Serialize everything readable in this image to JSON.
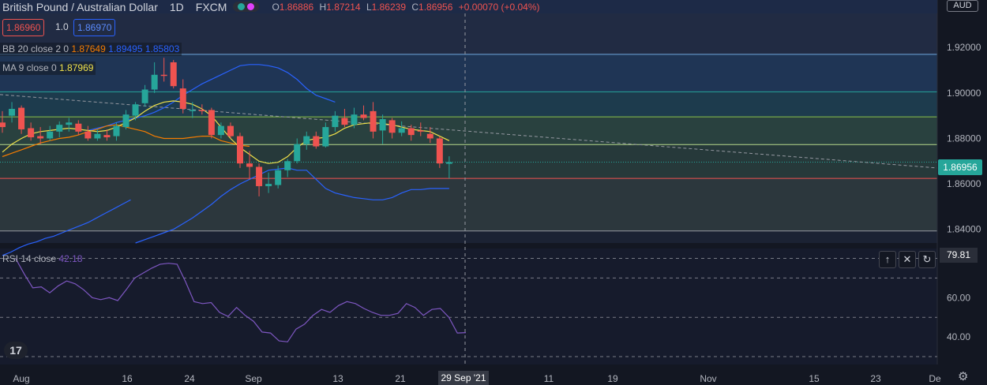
{
  "header": {
    "symbol": "British Pound / Australian Dollar",
    "interval": "1D",
    "exchange": "FXCM",
    "ohlc": [
      {
        "k": "O",
        "v": "1.86886"
      },
      {
        "k": "H",
        "v": "1.87214"
      },
      {
        "k": "L",
        "v": "1.86239"
      },
      {
        "k": "C",
        "v": "1.86956"
      }
    ],
    "change": "+0.00070 (+0.04%)"
  },
  "sell_price": "1.86960",
  "spread": "1.0",
  "buy_price": "1.86970",
  "indicators": {
    "bb": {
      "name": "BB 20 close 2 0",
      "basis": "1.87649",
      "upper": "1.89495",
      "lower": "1.85803"
    },
    "ma": {
      "name": "MA 9 close 0",
      "value": "1.87969"
    },
    "rsi": {
      "name": "RSI 14 close",
      "value": "42.18"
    }
  },
  "currency": "AUD",
  "current_price_tag": "1.86956",
  "rsi_tag": "79.81",
  "crosshair_date": "29 Sep '21",
  "colors": {
    "up": "#26a69a",
    "down": "#ef5350",
    "bb_upper": "#2962ff",
    "bb_basis": "#f57c00",
    "ma": "#f0e14a",
    "rsi": "#7e57c2",
    "bg": "#131722"
  },
  "chart_data": [
    {
      "type": "candlestick",
      "x_tick_labels": [
        "Aug",
        "16",
        "24",
        "Sep",
        "13",
        "21",
        "29 Sep '21",
        "11",
        "19",
        "Nov",
        "15",
        "23",
        "De"
      ],
      "y_tick_labels": [
        "1.92000",
        "1.90000",
        "1.88000",
        "1.86000",
        "1.84000"
      ],
      "ylim": [
        1.834,
        1.935
      ],
      "candles": [
        {
          "o": 1.887,
          "h": 1.892,
          "l": 1.8825,
          "c": 1.885
        },
        {
          "o": 1.89,
          "h": 1.896,
          "l": 1.887,
          "c": 1.893
        },
        {
          "o": 1.8935,
          "h": 1.8945,
          "l": 1.882,
          "c": 1.884
        },
        {
          "o": 1.8845,
          "h": 1.887,
          "l": 1.879,
          "c": 1.8805
        },
        {
          "o": 1.881,
          "h": 1.885,
          "l": 1.8775,
          "c": 1.88
        },
        {
          "o": 1.88,
          "h": 1.8855,
          "l": 1.879,
          "c": 1.883
        },
        {
          "o": 1.883,
          "h": 1.8875,
          "l": 1.8805,
          "c": 1.886
        },
        {
          "o": 1.886,
          "h": 1.889,
          "l": 1.883,
          "c": 1.887
        },
        {
          "o": 1.8865,
          "h": 1.888,
          "l": 1.8815,
          "c": 1.883
        },
        {
          "o": 1.883,
          "h": 1.8855,
          "l": 1.879,
          "c": 1.88
        },
        {
          "o": 1.88,
          "h": 1.884,
          "l": 1.879,
          "c": 1.882
        },
        {
          "o": 1.8815,
          "h": 1.884,
          "l": 1.879,
          "c": 1.8805
        },
        {
          "o": 1.881,
          "h": 1.887,
          "l": 1.879,
          "c": 1.8855
        },
        {
          "o": 1.885,
          "h": 1.8925,
          "l": 1.884,
          "c": 1.8905
        },
        {
          "o": 1.89,
          "h": 1.896,
          "l": 1.888,
          "c": 1.895
        },
        {
          "o": 1.8955,
          "h": 1.9035,
          "l": 1.894,
          "c": 1.9015
        },
        {
          "o": 1.9015,
          "h": 1.9135,
          "l": 1.9,
          "c": 1.908
        },
        {
          "o": 1.908,
          "h": 1.9155,
          "l": 1.905,
          "c": 1.9075
        },
        {
          "o": 1.9135,
          "h": 1.9145,
          "l": 1.902,
          "c": 1.903
        },
        {
          "o": 1.902,
          "h": 1.906,
          "l": 1.891,
          "c": 1.893
        },
        {
          "o": 1.892,
          "h": 1.896,
          "l": 1.889,
          "c": 1.8925
        },
        {
          "o": 1.8925,
          "h": 1.895,
          "l": 1.8905,
          "c": 1.892
        },
        {
          "o": 1.8925,
          "h": 1.8935,
          "l": 1.88,
          "c": 1.8815
        },
        {
          "o": 1.8815,
          "h": 1.887,
          "l": 1.88,
          "c": 1.8855
        },
        {
          "o": 1.8855,
          "h": 1.887,
          "l": 1.88,
          "c": 1.881
        },
        {
          "o": 1.881,
          "h": 1.8825,
          "l": 1.867,
          "c": 1.869
        },
        {
          "o": 1.869,
          "h": 1.8745,
          "l": 1.862,
          "c": 1.8675
        },
        {
          "o": 1.8675,
          "h": 1.869,
          "l": 1.8545,
          "c": 1.859
        },
        {
          "o": 1.859,
          "h": 1.865,
          "l": 1.856,
          "c": 1.86
        },
        {
          "o": 1.8595,
          "h": 1.868,
          "l": 1.858,
          "c": 1.866
        },
        {
          "o": 1.866,
          "h": 1.871,
          "l": 1.863,
          "c": 1.87
        },
        {
          "o": 1.87,
          "h": 1.88,
          "l": 1.869,
          "c": 1.8775
        },
        {
          "o": 1.8775,
          "h": 1.883,
          "l": 1.875,
          "c": 1.881
        },
        {
          "o": 1.881,
          "h": 1.883,
          "l": 1.8755,
          "c": 1.8765
        },
        {
          "o": 1.8765,
          "h": 1.887,
          "l": 1.876,
          "c": 1.885
        },
        {
          "o": 1.885,
          "h": 1.892,
          "l": 1.883,
          "c": 1.89
        },
        {
          "o": 1.889,
          "h": 1.893,
          "l": 1.885,
          "c": 1.886
        },
        {
          "o": 1.886,
          "h": 1.8935,
          "l": 1.8845,
          "c": 1.8905
        },
        {
          "o": 1.8905,
          "h": 1.8945,
          "l": 1.888,
          "c": 1.889
        },
        {
          "o": 1.892,
          "h": 1.896,
          "l": 1.88,
          "c": 1.883
        },
        {
          "o": 1.8835,
          "h": 1.8905,
          "l": 1.8775,
          "c": 1.8885
        },
        {
          "o": 1.888,
          "h": 1.889,
          "l": 1.88,
          "c": 1.8825
        },
        {
          "o": 1.8825,
          "h": 1.8875,
          "l": 1.881,
          "c": 1.8845
        },
        {
          "o": 1.8845,
          "h": 1.886,
          "l": 1.879,
          "c": 1.8815
        },
        {
          "o": 1.8835,
          "h": 1.887,
          "l": 1.881,
          "c": 1.883
        },
        {
          "o": 1.882,
          "h": 1.885,
          "l": 1.878,
          "c": 1.88
        },
        {
          "o": 1.88,
          "h": 1.881,
          "l": 1.867,
          "c": 1.869
        },
        {
          "o": 1.86886,
          "h": 1.87214,
          "l": 1.86239,
          "c": 1.86956
        }
      ],
      "bb_upper": [
        1.8835,
        1.8845,
        1.8855,
        1.887,
        1.888,
        1.889,
        1.89,
        1.8915,
        1.8935,
        1.896,
        1.899,
        1.9015,
        1.904,
        1.906,
        1.908,
        1.91,
        1.912,
        1.9125,
        1.9125,
        1.912,
        1.911,
        1.909,
        1.906,
        1.902,
        1.899,
        1.8975,
        1.896
      ],
      "bb_basis": [
        1.872,
        1.8735,
        1.875,
        1.8765,
        1.878,
        1.879,
        1.88,
        1.8805,
        1.8815,
        1.883,
        1.884,
        1.8855,
        1.886,
        1.885,
        1.884,
        1.883,
        1.881,
        1.88,
        1.88,
        1.88,
        1.8805,
        1.881,
        1.881,
        1.879,
        1.878,
        1.877,
        1.8765
      ],
      "bb_lower": [
        1.834,
        1.8355,
        1.837,
        1.8385,
        1.84,
        1.8425,
        1.845,
        1.848,
        1.851,
        1.8545,
        1.8575,
        1.86,
        1.862,
        1.864,
        1.866,
        1.8665,
        1.867,
        1.866,
        1.866,
        1.862,
        1.858,
        1.856,
        1.855,
        1.854,
        1.8535,
        1.853,
        1.853,
        1.854,
        1.856,
        1.8575,
        1.8575,
        1.858,
        1.858,
        1.858
      ],
      "ma9": [
        1.874,
        1.8775,
        1.88,
        1.882,
        1.883,
        1.8835,
        1.884,
        1.8845,
        1.884,
        1.8835,
        1.883,
        1.8835,
        1.885,
        1.887,
        1.889,
        1.892,
        1.8945,
        1.896,
        1.8965,
        1.896,
        1.895,
        1.893,
        1.89,
        1.885,
        1.88,
        1.876,
        1.873,
        1.87,
        1.869,
        1.8695,
        1.872,
        1.876,
        1.879,
        1.88,
        1.8805,
        1.882,
        1.8845,
        1.886,
        1.8865,
        1.887,
        1.8865,
        1.886,
        1.885,
        1.884,
        1.8835,
        1.883,
        1.881,
        1.879
      ],
      "fib_levels": [
        1.917,
        1.9005,
        1.8895,
        1.8773,
        1.8624,
        1.8393
      ]
    },
    {
      "type": "line",
      "name": "RSI 14 close",
      "y_tick_labels": [
        "60.00",
        "40.00"
      ],
      "ylim": [
        26,
        85
      ],
      "levels": [
        80,
        70,
        50,
        30
      ],
      "values": [
        79.8,
        72,
        65,
        65.5,
        62.5,
        66,
        68.5,
        67,
        64,
        60,
        59,
        60,
        58.5,
        64,
        70,
        72.5,
        75,
        77,
        77.5,
        77,
        68,
        58,
        57,
        57.5,
        52.5,
        50.5,
        55,
        51,
        48,
        42.5,
        42,
        38,
        37.5,
        44,
        46.5,
        51,
        54,
        52.5,
        56,
        58,
        57,
        54.5,
        52.5,
        51,
        51,
        52,
        57,
        55,
        51,
        54,
        54.5,
        50,
        42,
        42.2
      ]
    }
  ]
}
